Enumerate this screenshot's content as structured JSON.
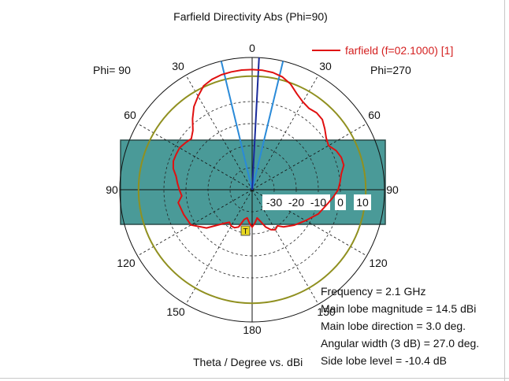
{
  "chart_data": {
    "type": "polar-line",
    "title": "Farfield Directivity Abs (Phi=90)",
    "xlabel": "Theta / Degree vs. dBi",
    "left_phi_label": "Phi= 90",
    "right_phi_label": "Phi=270",
    "angle_labels": [
      "0",
      "30",
      "60",
      "90",
      "120",
      "150",
      "180",
      "150",
      "120",
      "90",
      "60",
      "30"
    ],
    "radial_range": [
      -40,
      20
    ],
    "radial_ticks": [
      "-30",
      "-20",
      "-10",
      "0",
      "10"
    ],
    "grid": true,
    "legend_position": "top-right",
    "series": [
      {
        "name": "farfield (f=02.1000) [1]",
        "color": "#e01010",
        "points": [
          [
            -180,
            -23
          ],
          [
            -175,
            -25
          ],
          [
            -170,
            -27
          ],
          [
            -165,
            -26
          ],
          [
            -160,
            -22
          ],
          [
            -155,
            -21
          ],
          [
            -150,
            -21
          ],
          [
            -145,
            -22
          ],
          [
            -140,
            -20
          ],
          [
            -130,
            -13
          ],
          [
            -120,
            -8
          ],
          [
            -110,
            -7
          ],
          [
            -100,
            -6
          ],
          [
            -95,
            -8
          ],
          [
            -90,
            -7
          ],
          [
            -85,
            -6
          ],
          [
            -80,
            -5
          ],
          [
            -75,
            -3
          ],
          [
            -70,
            -2
          ],
          [
            -65,
            -2
          ],
          [
            -60,
            -2
          ],
          [
            -55,
            -3
          ],
          [
            -50,
            -4
          ],
          [
            -45,
            -2
          ],
          [
            -40,
            2
          ],
          [
            -35,
            6
          ],
          [
            -30,
            9
          ],
          [
            -25,
            12
          ],
          [
            -20,
            13.3
          ],
          [
            -15,
            14
          ],
          [
            -10,
            14.3
          ],
          [
            -5,
            14.5
          ],
          [
            0,
            14.5
          ],
          [
            5,
            14.4
          ],
          [
            10,
            14
          ],
          [
            15,
            13
          ],
          [
            20,
            11
          ],
          [
            25,
            8
          ],
          [
            30,
            6
          ],
          [
            35,
            5
          ],
          [
            40,
            5.5
          ],
          [
            45,
            5
          ],
          [
            50,
            3
          ],
          [
            55,
            1
          ],
          [
            60,
            0
          ],
          [
            65,
            2
          ],
          [
            70,
            3
          ],
          [
            75,
            3
          ],
          [
            80,
            1
          ],
          [
            85,
            0
          ],
          [
            90,
            -1
          ],
          [
            95,
            -3
          ],
          [
            100,
            -5
          ],
          [
            110,
            -8
          ],
          [
            120,
            -12
          ],
          [
            130,
            -15
          ],
          [
            140,
            -18
          ],
          [
            145,
            -20
          ],
          [
            150,
            -19
          ],
          [
            155,
            -20
          ],
          [
            160,
            -22
          ],
          [
            165,
            -25
          ],
          [
            170,
            -27
          ],
          [
            175,
            -25
          ],
          [
            180,
            -23
          ]
        ]
      }
    ],
    "main_lobe_direction_deg": 3.0,
    "main_lobe_lines_color": "#1a2a9a",
    "beamwidth_lines_color": "#2a8ad8",
    "beamwidth_edges_deg": [
      -13.5,
      13.5
    ],
    "threedb_circle_color": "#909020",
    "threedb_circle_level": 11.5,
    "shade_color": "#4a9a98",
    "marker_label": "T",
    "info": {
      "frequency": "Frequency = 2.1 GHz",
      "main_lobe_magnitude": "Main lobe magnitude =      14.5 dBi",
      "main_lobe_direction": "Main lobe direction =    3.0 deg.",
      "angular_width": "Angular width (3 dB) =   27.0 deg.",
      "side_lobe_level": "Side lobe level =  -10.4 dB"
    }
  }
}
